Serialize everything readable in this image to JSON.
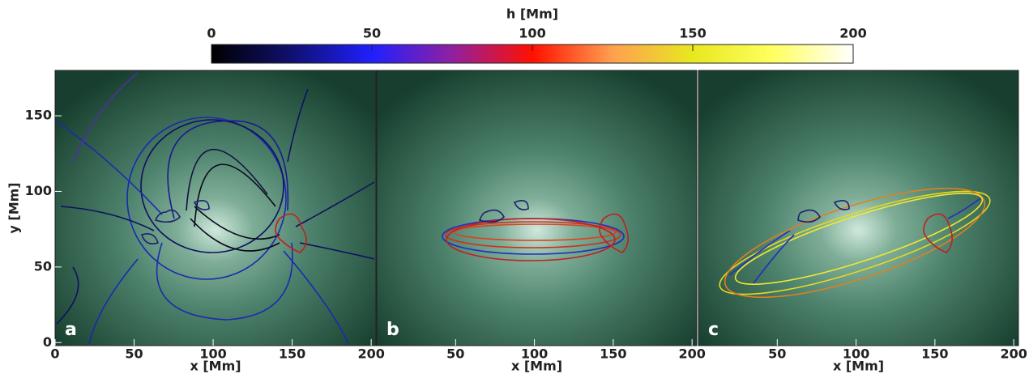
{
  "chart_data": [
    {
      "type": "colorbar",
      "title": "h [Mm]",
      "xlim": [
        0,
        200
      ],
      "xticks": [
        0,
        50,
        100,
        150,
        200
      ],
      "colors": [
        "#000000",
        "#101070",
        "#2020ff",
        "#9020a0",
        "#ff1000",
        "#ffa050",
        "#e8e820",
        "#ffff60",
        "#ffffff"
      ]
    },
    {
      "type": "image",
      "panel_label": "a",
      "xlabel": "x [Mm]",
      "ylabel": "y [Mm]",
      "xlim": [
        0,
        203
      ],
      "ylim": [
        -2,
        180
      ],
      "xticks": [
        0,
        50,
        100,
        150,
        200
      ],
      "yticks": [
        0,
        50,
        100,
        150
      ]
    },
    {
      "type": "image",
      "panel_label": "b",
      "xlabel": "x [Mm]",
      "xlim": [
        0,
        203
      ],
      "ylim": [
        -2,
        180
      ],
      "xticks": [
        50,
        100,
        150,
        200
      ]
    },
    {
      "type": "image",
      "panel_label": "c",
      "xlabel": "x [Mm]",
      "xlim": [
        0,
        203
      ],
      "ylim": [
        -2,
        180
      ],
      "xticks": [
        50,
        100,
        150,
        200
      ]
    }
  ]
}
